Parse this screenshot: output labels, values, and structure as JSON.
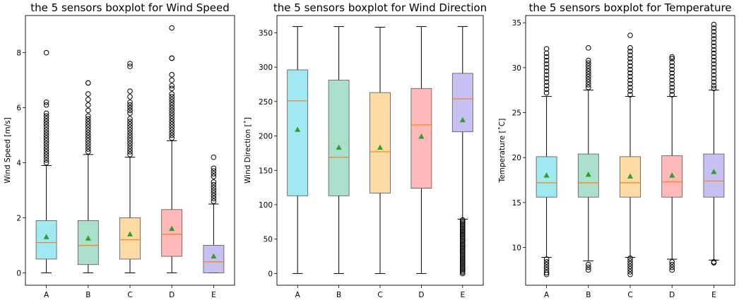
{
  "chart_data": [
    {
      "type": "box",
      "title": "the 5 sensors boxplot for Wind Speed",
      "xlabel": "",
      "ylabel": "Wind Speed [m/s]",
      "ylim": [
        -0.45,
        9.35
      ],
      "yticks": [
        0,
        2,
        4,
        6,
        8
      ],
      "categories": [
        "A",
        "B",
        "C",
        "D",
        "E"
      ],
      "boxes": [
        {
          "whislo": 0,
          "q1": 0.5,
          "med": 1.1,
          "q3": 1.9,
          "whishi": 3.9,
          "mean": 1.3,
          "fliers": [
            4.0,
            4.1,
            4.2,
            4.3,
            4.4,
            4.5,
            4.6,
            4.7,
            4.8,
            4.9,
            5.0,
            5.1,
            5.2,
            5.3,
            5.4,
            5.5,
            5.6,
            5.7,
            5.8,
            6.1,
            6.2,
            8.0
          ]
        },
        {
          "whislo": 0,
          "q1": 0.3,
          "med": 1.0,
          "q3": 1.9,
          "whishi": 4.3,
          "mean": 1.25,
          "fliers": [
            4.4,
            4.5,
            4.6,
            4.7,
            4.8,
            4.9,
            5.0,
            5.1,
            5.2,
            5.3,
            5.4,
            5.5,
            5.6,
            5.7,
            5.9,
            6.1,
            6.3,
            6.5,
            6.9,
            6.9
          ]
        },
        {
          "whislo": 0,
          "q1": 0.5,
          "med": 1.2,
          "q3": 2.0,
          "whishi": 4.2,
          "mean": 1.4,
          "fliers": [
            4.3,
            4.4,
            4.5,
            4.6,
            4.7,
            4.8,
            4.9,
            5.0,
            5.1,
            5.2,
            5.3,
            5.4,
            5.5,
            5.6,
            5.8,
            5.9,
            6.0,
            6.1,
            6.2,
            6.4,
            6.6,
            7.5,
            7.6
          ]
        },
        {
          "whislo": 0,
          "q1": 0.6,
          "med": 1.4,
          "q3": 2.3,
          "whishi": 4.8,
          "mean": 1.6,
          "fliers": [
            4.9,
            5.0,
            5.1,
            5.2,
            5.3,
            5.4,
            5.5,
            5.6,
            5.7,
            5.8,
            5.9,
            6.0,
            6.1,
            6.2,
            6.3,
            6.4,
            6.5,
            6.7,
            6.8,
            7.0,
            7.2,
            7.8,
            7.8,
            8.9
          ]
        },
        {
          "whislo": 0,
          "q1": 0.0,
          "med": 0.4,
          "q3": 1.0,
          "whishi": 2.5,
          "mean": 0.6,
          "fliers": [
            2.6,
            2.7,
            2.8,
            2.9,
            3.0,
            3.1,
            3.2,
            3.3,
            3.5,
            3.6,
            3.7,
            3.8,
            4.2
          ]
        }
      ]
    },
    {
      "type": "box",
      "title": "the 5 sensors boxplot for Wind Direction",
      "xlabel": "",
      "ylabel": "Wind Direction [˚]",
      "ylim": [
        -17,
        375
      ],
      "yticks": [
        0,
        50,
        100,
        150,
        200,
        250,
        300,
        350
      ],
      "categories": [
        "A",
        "B",
        "C",
        "D",
        "E"
      ],
      "boxes": [
        {
          "whislo": 0,
          "q1": 113,
          "med": 251,
          "q3": 296,
          "whishi": 359,
          "mean": 209,
          "fliers": []
        },
        {
          "whislo": 0,
          "q1": 113,
          "med": 169,
          "q3": 281,
          "whishi": 359,
          "mean": 183,
          "fliers": []
        },
        {
          "whislo": 0,
          "q1": 117,
          "med": 177,
          "q3": 263,
          "whishi": 358,
          "mean": 183,
          "fliers": []
        },
        {
          "whislo": 0,
          "q1": 124,
          "med": 216,
          "q3": 269,
          "whishi": 359,
          "mean": 199,
          "fliers": []
        },
        {
          "whislo": 79,
          "q1": 206,
          "med": 254,
          "q3": 291,
          "whishi": 359,
          "mean": 223,
          "fliers": [
            0,
            2,
            4,
            6,
            8,
            10,
            12,
            14,
            16,
            18,
            20,
            22,
            24,
            26,
            28,
            30,
            32,
            34,
            36,
            38,
            40,
            42,
            44,
            46,
            48,
            50,
            52,
            54,
            56,
            58,
            60,
            62,
            64,
            66,
            68,
            70,
            72,
            74,
            76,
            78
          ]
        }
      ]
    },
    {
      "type": "box",
      "title": "the 5 sensors boxplot for Temperature",
      "xlabel": "",
      "ylabel": "Temperature [˚C]",
      "ylim": [
        5.8,
        35.8
      ],
      "yticks": [
        10,
        15,
        20,
        25,
        30,
        35
      ],
      "categories": [
        "A",
        "B",
        "C",
        "D",
        "E"
      ],
      "boxes": [
        {
          "whislo": 8.9,
          "q1": 15.6,
          "med": 17.2,
          "q3": 20.1,
          "whishi": 26.8,
          "mean": 18.0,
          "fliers": [
            7.0,
            7.2,
            7.5,
            7.8,
            8.1,
            8.4,
            8.7,
            27.2,
            27.6,
            28.0,
            28.4,
            28.8,
            29.2,
            29.6,
            30.0,
            30.4,
            30.8,
            31.2,
            31.6,
            32.1
          ]
        },
        {
          "whislo": 8.5,
          "q1": 15.6,
          "med": 17.2,
          "q3": 20.4,
          "whishi": 27.5,
          "mean": 18.1,
          "fliers": [
            7.5,
            7.8,
            8.1,
            27.8,
            28.1,
            28.4,
            28.7,
            29.0,
            29.3,
            29.6,
            29.9,
            30.2,
            30.5,
            30.8,
            32.2
          ]
        },
        {
          "whislo": 8.9,
          "q1": 15.6,
          "med": 17.2,
          "q3": 20.1,
          "whishi": 26.8,
          "mean": 17.9,
          "fliers": [
            7.0,
            7.3,
            7.6,
            7.9,
            8.2,
            8.5,
            8.8,
            27.0,
            27.4,
            27.8,
            28.2,
            28.6,
            29.0,
            29.4,
            29.8,
            30.2,
            30.6,
            31.0,
            31.4,
            31.8,
            32.2,
            33.6
          ]
        },
        {
          "whislo": 8.7,
          "q1": 15.6,
          "med": 17.3,
          "q3": 20.2,
          "whishi": 26.8,
          "mean": 18.0,
          "fliers": [
            7.5,
            7.8,
            8.1,
            8.4,
            27.0,
            27.4,
            27.8,
            28.2,
            28.6,
            29.0,
            29.4,
            29.8,
            30.2,
            30.6,
            31.0,
            31.2
          ]
        },
        {
          "whislo": 8.6,
          "q1": 15.6,
          "med": 17.4,
          "q3": 20.4,
          "whishi": 27.5,
          "mean": 18.4,
          "fliers": [
            8.3,
            8.4,
            27.7,
            28.0,
            28.4,
            28.8,
            29.2,
            29.6,
            30.0,
            30.4,
            30.8,
            31.2,
            31.6,
            32.0,
            32.4,
            32.8,
            33.2,
            33.6,
            34.0,
            34.4,
            34.8
          ]
        }
      ]
    }
  ],
  "colors": {
    "box_fills": [
      "#a0e8f2",
      "#aae0cc",
      "#fedba5",
      "#ffb9b9",
      "#c7c0f2"
    ],
    "median": "#ff7f0e",
    "mean_marker": "#2ca02c",
    "whisker": "#000000",
    "box_edge": "#555555"
  }
}
